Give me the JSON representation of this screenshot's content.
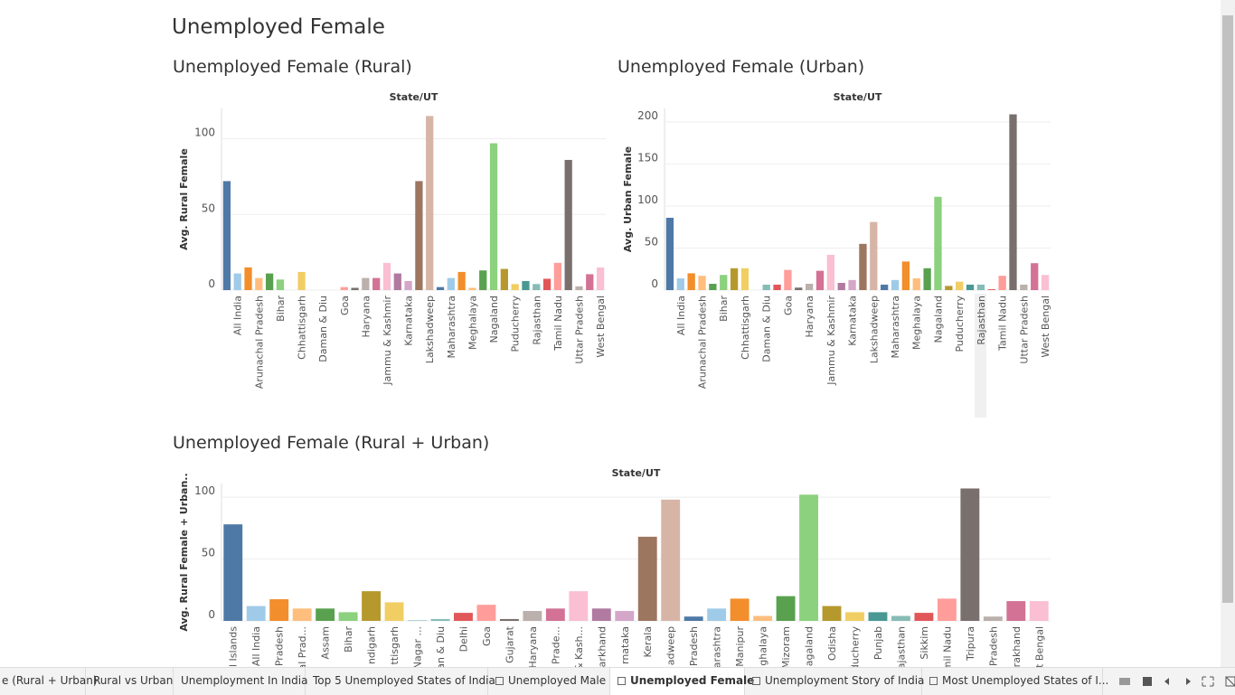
{
  "title": "Unemployed Female",
  "chart_data": [
    {
      "type": "bar",
      "title": "Unemployed Female (Rural)",
      "x_label": "State/UT",
      "y_label": "Avg. Rural Female",
      "categories": [
        null,
        "All India",
        null,
        "Arunachal Pradesh",
        null,
        "Bihar",
        null,
        "Chhattisgarh",
        null,
        "Daman & Diu",
        null,
        "Goa",
        null,
        "Haryana",
        null,
        "Jammu & Kashmir",
        null,
        "Karnataka",
        null,
        "Lakshadweep",
        null,
        "Maharashtra",
        null,
        "Meghalaya",
        null,
        "Nagaland",
        null,
        "Puducherry",
        null,
        "Rajasthan",
        null,
        "Tamil Nadu",
        null,
        "Uttar Pradesh",
        null,
        "West Bengal"
      ],
      "values": [
        72,
        11,
        15,
        8,
        11,
        7,
        0,
        12,
        0,
        0,
        0,
        2,
        1.5,
        8,
        8,
        18,
        11,
        6,
        72,
        115,
        2,
        8,
        12,
        1.5,
        13,
        97,
        14,
        4,
        6,
        4,
        7.5,
        18,
        86,
        2.5,
        10.5,
        15
      ],
      "colors": [
        "#4e79a7",
        "#a0cbe8",
        "#f28e2b",
        "#ffbe7d",
        "#59a14f",
        "#8cd17d",
        "#b6992d",
        "#f1ce63",
        "#499894",
        "#86bcb6",
        "#e15759",
        "#ff9d9a",
        "#79706e",
        "#bab0ac",
        "#d37295",
        "#fabfd2",
        "#b07aa1",
        "#d4a6c8",
        "#9d7660",
        "#d7b5a6"
      ],
      "ylim": [
        0,
        120
      ],
      "yticks": [
        0,
        50,
        100
      ],
      "grid": true
    },
    {
      "type": "bar",
      "title": "Unemployed Female (Urban)",
      "x_label": "State/UT",
      "y_label": "Avg. Urban Female",
      "categories": [
        null,
        "All India",
        null,
        "Arunachal Pradesh",
        null,
        "Bihar",
        null,
        "Chhattisgarh",
        null,
        "Daman & Diu",
        null,
        "Goa",
        null,
        "Haryana",
        null,
        "Jammu & Kashmir",
        null,
        "Karnataka",
        null,
        "Lakshadweep",
        null,
        "Maharashtra",
        null,
        "Meghalaya",
        null,
        "Nagaland",
        null,
        "Puducherry",
        null,
        "Rajasthan",
        null,
        "Tamil Nadu",
        null,
        "Uttar Pradesh",
        null,
        "West Bengal"
      ],
      "values": [
        86,
        14,
        20,
        17,
        7.5,
        18,
        26,
        26,
        0,
        6.5,
        6.5,
        24,
        3,
        7.5,
        23,
        42,
        8.6,
        12,
        55,
        81,
        6.5,
        12,
        34,
        14,
        26,
        111,
        5,
        10,
        6.5,
        6.5,
        1,
        17,
        209,
        6.5,
        32,
        18
      ],
      "colors": [
        "#4e79a7",
        "#a0cbe8",
        "#f28e2b",
        "#ffbe7d",
        "#59a14f",
        "#8cd17d",
        "#b6992d",
        "#f1ce63",
        "#499894",
        "#86bcb6",
        "#e15759",
        "#ff9d9a",
        "#79706e",
        "#bab0ac",
        "#d37295",
        "#fabfd2",
        "#b07aa1",
        "#d4a6c8",
        "#9d7660",
        "#d7b5a6"
      ],
      "ylim": [
        0,
        216
      ],
      "yticks": [
        0,
        50,
        100,
        150,
        200
      ],
      "grid": true
    },
    {
      "type": "bar",
      "title": "Unemployed Female (Rural + Urban)",
      "x_label": "State/UT",
      "y_label": "Avg. Rural Female + Urban..",
      "categories": [
        "l Islands",
        "All India",
        "Pradesh",
        "hal Prad...",
        "Assam",
        "Bihar",
        "ndigarh",
        "ttisgarh",
        "Nagar ...",
        "an & Diu",
        "Delhi",
        "Goa",
        "Gujarat",
        "Haryana",
        "l Prade...",
        "& Kash...",
        "arkhand",
        "rnataka",
        "Kerala",
        "adweep",
        "Pradesh",
        "arashtra",
        "Manipur",
        "ghalaya",
        "Mizoram",
        "agaland",
        "Odisha",
        "ducherry",
        "Punjab",
        "ajasthan",
        "Sikkim",
        "mil Nadu",
        "Tripura",
        "Pradesh",
        "rakhand",
        "t Bengal"
      ],
      "values": [
        78,
        12,
        17.5,
        10,
        10,
        7,
        24,
        15,
        0.3,
        1.5,
        6.5,
        13,
        1.5,
        8,
        10,
        24,
        10,
        8,
        68,
        98,
        3.5,
        10,
        18,
        4,
        20,
        102,
        12,
        7,
        7,
        4,
        6.5,
        18,
        107,
        3.5,
        16,
        16
      ],
      "colors": [
        "#4e79a7",
        "#a0cbe8",
        "#f28e2b",
        "#ffbe7d",
        "#59a14f",
        "#8cd17d",
        "#b6992d",
        "#f1ce63",
        "#499894",
        "#86bcb6",
        "#e15759",
        "#ff9d9a",
        "#79706e",
        "#bab0ac",
        "#d37295",
        "#fabfd2",
        "#b07aa1",
        "#d4a6c8",
        "#9d7660",
        "#d7b5a6"
      ],
      "ylim": [
        0,
        111
      ],
      "yticks": [
        0,
        50,
        100
      ],
      "grid": true
    }
  ],
  "tabs": [
    {
      "label": "e (Rural + Urban)"
    },
    {
      "label": "Rural vs Urban"
    },
    {
      "label": "Unemployment In India"
    },
    {
      "label": "Top 5 Unemployed States of India"
    },
    {
      "label": "Unemployed Male"
    },
    {
      "label": "Unemployed Female"
    },
    {
      "label": "Unemployment Story of India"
    },
    {
      "label": "Most Unemployed States of I..."
    }
  ]
}
